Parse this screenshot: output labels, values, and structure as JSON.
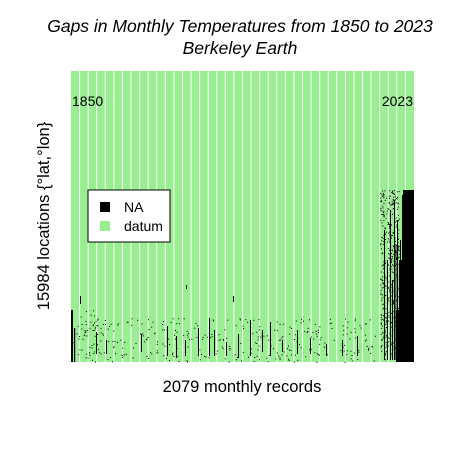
{
  "chart_data": {
    "type": "heatmap",
    "title_line1": "Gaps in Monthly Temperatures from 1850 to 2023",
    "title_line2": "Berkeley Earth",
    "xlabel": "2079 monthly records",
    "ylabel": "15984 locations {°lat,°lon}",
    "annotations": {
      "start_year": "1850",
      "end_year": "2023"
    },
    "legend": {
      "position": "left-middle",
      "entries": [
        {
          "label": "NA",
          "color": "#000000"
        },
        {
          "label": "datum",
          "color": "#98ee90"
        }
      ]
    },
    "x_records": 2079,
    "y_locations": 15984,
    "colors": {
      "datum": "#98ee90",
      "na": "#000000",
      "grid": "#ffffff"
    },
    "grid": true
  }
}
